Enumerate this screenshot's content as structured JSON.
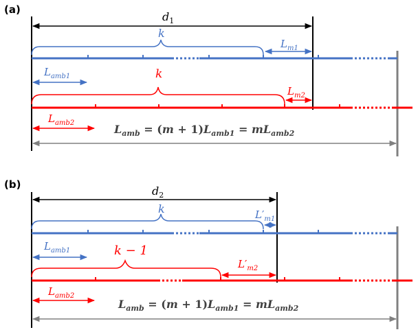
{
  "colors": {
    "blue": "#4472C4",
    "red": "#FF0000",
    "black": "#000000",
    "gray": "#808080"
  },
  "panels": [
    {
      "panel_label": "(a)",
      "distance": {
        "base": "d",
        "sub": "1"
      },
      "blue_brace": {
        "text": "k"
      },
      "red_brace": {
        "text": "k"
      },
      "blue_rem": {
        "base": "L",
        "prime": "",
        "sub": "m1"
      },
      "red_rem": {
        "base": "L",
        "prime": "",
        "sub": "m2"
      },
      "blue_unit": {
        "base": "L",
        "sub": "amb1"
      },
      "red_unit": {
        "base": "L",
        "sub": "amb2"
      },
      "equation": {
        "p1": "L",
        "p2": "amb",
        "p3": " = (",
        "p4": "m",
        "p5": " + 1)",
        "p6": "L",
        "p7": "amb1",
        "p8": " = ",
        "p9": "mL",
        "p10": "amb2"
      }
    },
    {
      "panel_label": "(b)",
      "distance": {
        "base": "d",
        "sub": "2"
      },
      "blue_brace": {
        "text": "k"
      },
      "red_brace": {
        "text": "k − 1"
      },
      "blue_rem": {
        "base": "L",
        "prime": "′",
        "sub": "m1"
      },
      "red_rem": {
        "base": "L",
        "prime": "′",
        "sub": "m2"
      },
      "blue_unit": {
        "base": "L",
        "sub": "amb1"
      },
      "red_unit": {
        "base": "L",
        "sub": "amb2"
      },
      "equation": {
        "p1": "L",
        "p2": "amb",
        "p3": " = (",
        "p4": "m",
        "p5": " + 1)",
        "p6": "L",
        "p7": "amb1",
        "p8": " = ",
        "p9": "mL",
        "p10": "amb2"
      }
    }
  ]
}
